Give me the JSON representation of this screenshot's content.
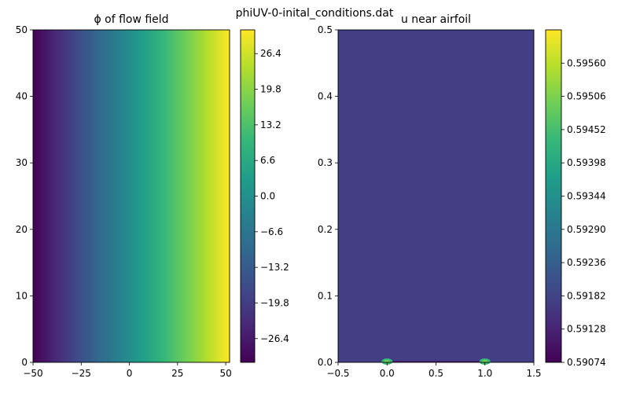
{
  "figure": {
    "suptitle": "phiUV-0-inital_conditions.dat"
  },
  "chart_data": [
    {
      "type": "heatmap",
      "title": "ϕ of flow field",
      "xlabel": "",
      "ylabel": "",
      "xlim": [
        -50,
        52
      ],
      "ylim": [
        0,
        50
      ],
      "xticks": [
        -50,
        -25,
        0,
        25,
        50
      ],
      "yticks": [
        0,
        10,
        20,
        30,
        40,
        50
      ],
      "field": "linear in x, approximately ϕ = 0.6 · x",
      "clim": [
        -30.8,
        30.8
      ],
      "colormap": "viridis",
      "colorbar_ticks": [
        "−26.4",
        "−19.8",
        "−13.2",
        "−6.6",
        "0.0",
        "6.6",
        "13.2",
        "19.8",
        "26.4"
      ],
      "colorbar_tick_values": [
        -26.4,
        -19.8,
        -13.2,
        -6.6,
        0.0,
        6.6,
        13.2,
        19.8,
        26.4
      ]
    },
    {
      "type": "heatmap",
      "title": "u near airfoil",
      "xlabel": "",
      "ylabel": "",
      "xlim": [
        -0.5,
        1.5
      ],
      "ylim": [
        0,
        0.5
      ],
      "xticks": [
        -0.5,
        0.0,
        0.5,
        1.0,
        1.5
      ],
      "yticks": [
        0.0,
        0.1,
        0.2,
        0.3,
        0.4,
        0.5
      ],
      "field": "nearly uniform ≈ 0.5917, small spots near (0,0) and (1,0)",
      "background_value": 0.5917,
      "hot_spots": [
        {
          "x": 0.0,
          "y": 0.0
        },
        {
          "x": 1.0,
          "y": 0.0
        }
      ],
      "clim": [
        0.59074,
        0.59614
      ],
      "colormap": "viridis",
      "colorbar_ticks": [
        "0.59074",
        "0.59128",
        "0.59182",
        "0.59236",
        "0.59290",
        "0.59344",
        "0.59398",
        "0.59452",
        "0.59506",
        "0.59560"
      ],
      "colorbar_tick_values": [
        0.59074,
        0.59128,
        0.59182,
        0.59236,
        0.5929,
        0.59344,
        0.59398,
        0.59452,
        0.59506,
        0.5956
      ]
    }
  ]
}
